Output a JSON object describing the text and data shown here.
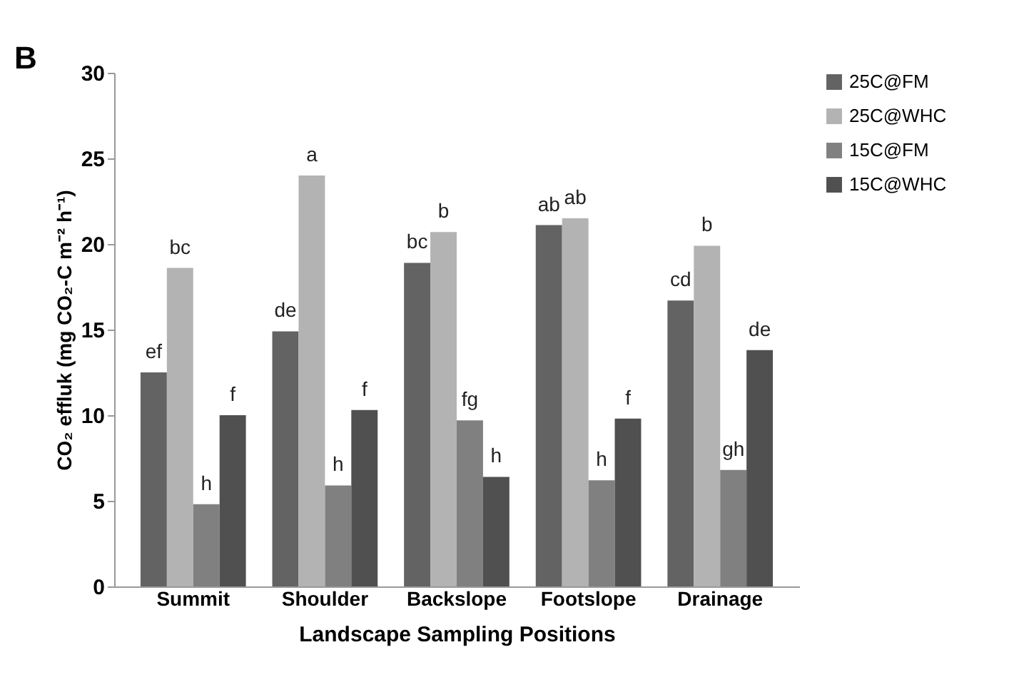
{
  "chart_data": {
    "type": "bar",
    "xlabel": "Landscape Sampling Positions",
    "ylabel": "CO₂ effluk (mg CO₂-C m⁻² h⁻¹)",
    "categories": [
      "Summit",
      "Shoulder",
      "Backslope",
      "Footslope",
      "Drainage"
    ],
    "series": [
      {
        "name": "25C@FM",
        "color": "#636363",
        "values": [
          12.5,
          14.9,
          18.9,
          21.1,
          16.7
        ],
        "value_labels": [
          "ef",
          "de",
          "bc",
          "ab",
          "cd"
        ]
      },
      {
        "name": "25C@WHC",
        "color": "#b3b3b3",
        "values": [
          18.6,
          24.0,
          20.7,
          21.5,
          19.9
        ],
        "value_labels": [
          "bc",
          "a",
          "b",
          "ab",
          "b"
        ]
      },
      {
        "name": "15C@FM",
        "color": "#808080",
        "values": [
          4.8,
          5.9,
          9.7,
          6.2,
          6.8
        ],
        "value_labels": [
          "h",
          "h",
          "fg",
          "h",
          "gh"
        ]
      },
      {
        "name": "15C@WHC",
        "color": "#505050",
        "values": [
          10.0,
          10.3,
          6.4,
          9.8,
          13.8
        ],
        "value_labels": [
          "f",
          "f",
          "h",
          "f",
          "de"
        ]
      }
    ],
    "ylim": [
      0,
      30
    ],
    "yticks": [
      0,
      5,
      10,
      15,
      20,
      25,
      30
    ],
    "grid": false,
    "legend": "top right",
    "annotations": [
      "B"
    ]
  }
}
